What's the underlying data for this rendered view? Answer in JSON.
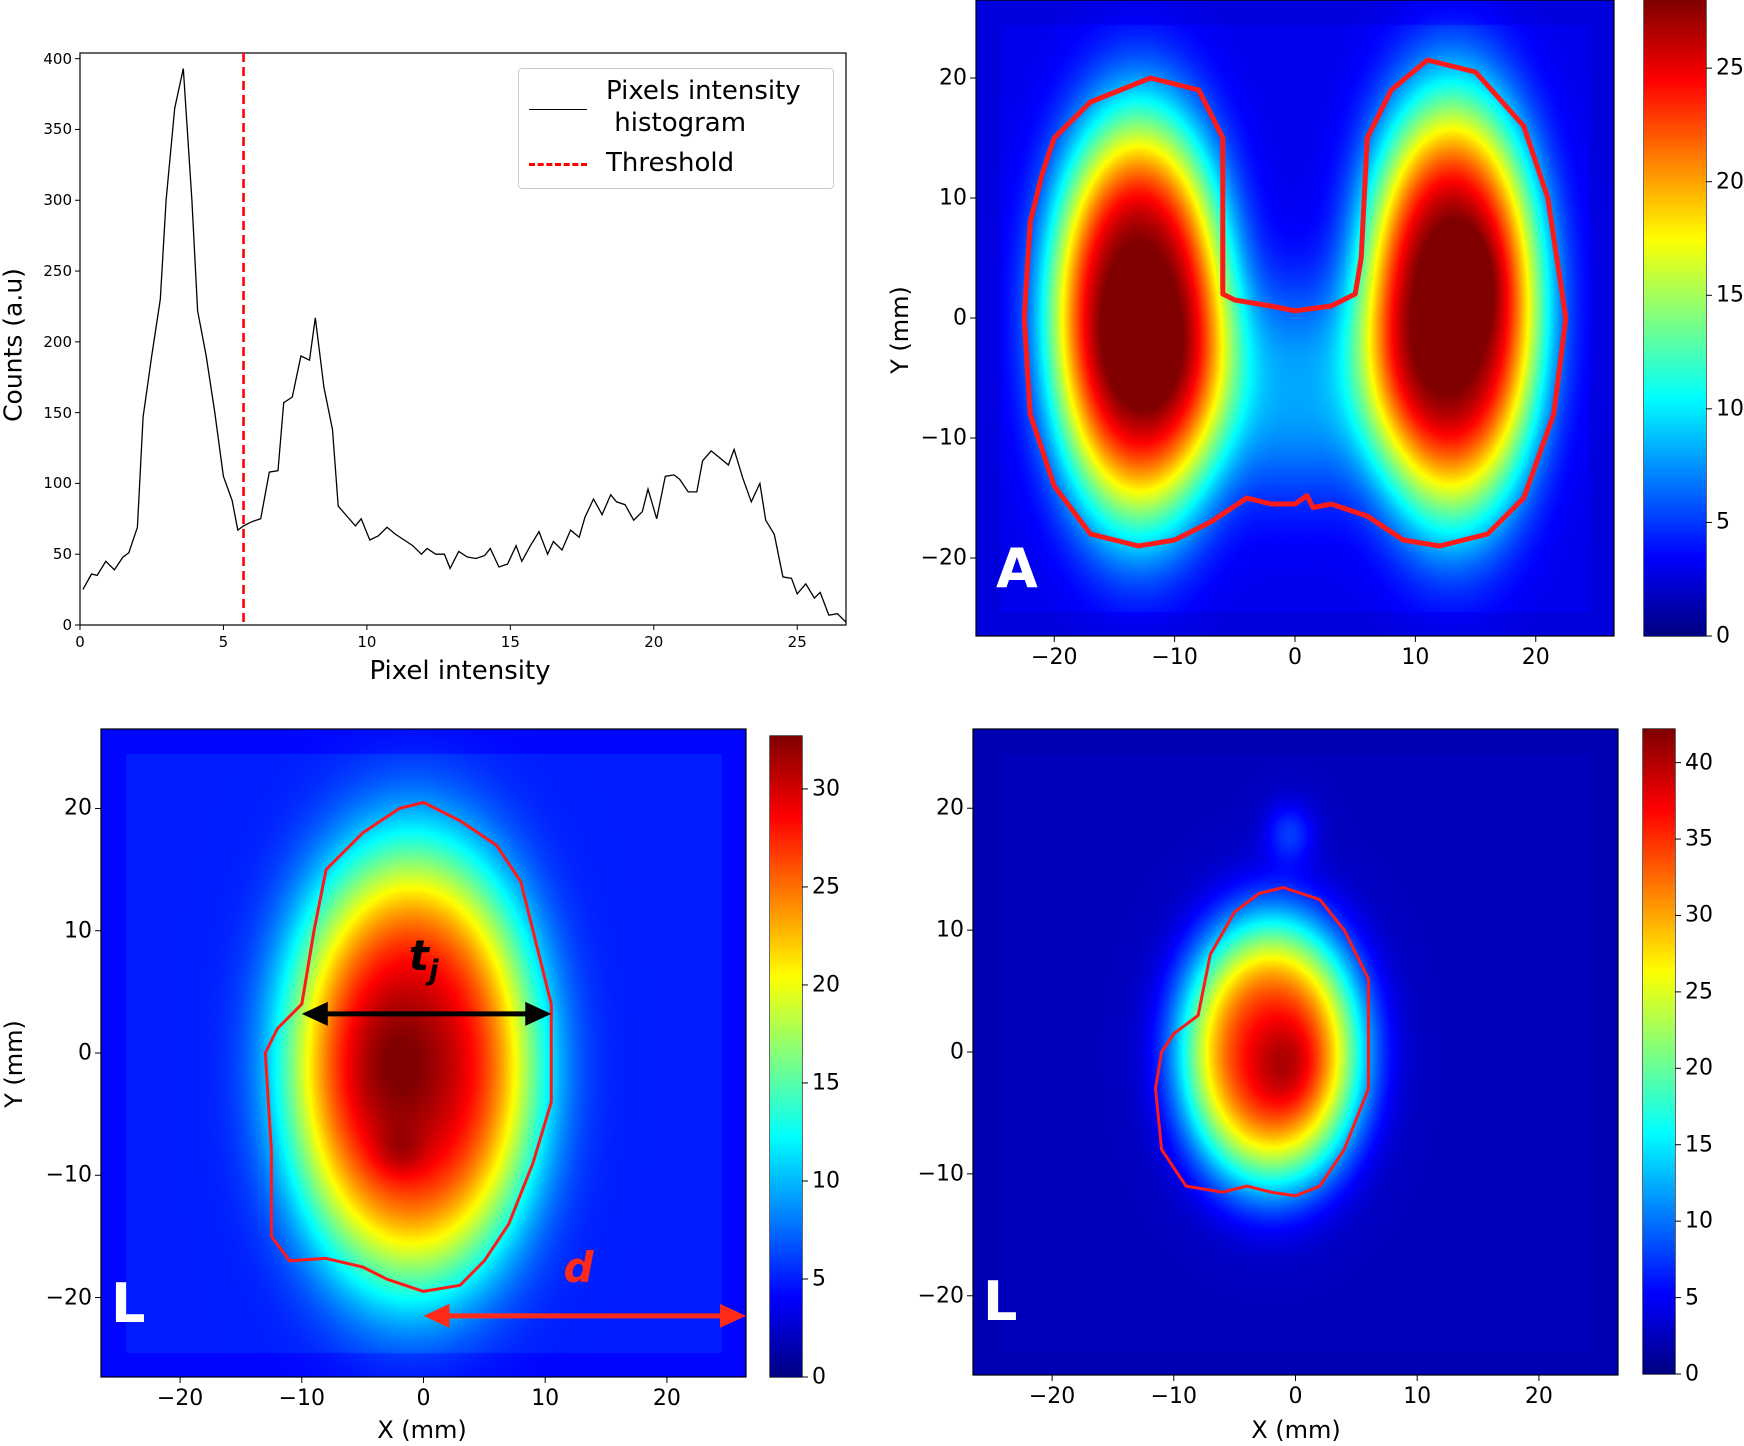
{
  "chart_data": [
    {
      "type": "line",
      "panel": "histogram",
      "xlabel": "Pixel intensity",
      "ylabel": "Counts (a.u)",
      "xlim": [
        0,
        26.7
      ],
      "ylim": [
        0,
        404
      ],
      "xticks": [
        0,
        5,
        10,
        15,
        20,
        25
      ],
      "yticks": [
        0,
        50,
        100,
        150,
        200,
        250,
        300,
        350,
        400
      ],
      "grid": false,
      "legend": {
        "placement": "top-right",
        "entries": [
          "Pixels intensity\n histogram",
          "Threshold"
        ]
      },
      "series": [
        {
          "name": "Pixels intensity histogram",
          "color": "#000000",
          "x": [
            0.1,
            0.4,
            0.6,
            0.9,
            1.2,
            1.5,
            1.7,
            2.0,
            2.2,
            2.5,
            2.8,
            3.0,
            3.3,
            3.6,
            3.9,
            4.1,
            4.4,
            4.7,
            5.0,
            5.3,
            5.5,
            5.7,
            6.0,
            6.3,
            6.6,
            6.9,
            7.1,
            7.4,
            7.7,
            8.0,
            8.2,
            8.5,
            8.8,
            9.0,
            9.3,
            9.6,
            9.8,
            10.1,
            10.4,
            10.7,
            11.0,
            11.3,
            11.6,
            11.9,
            12.1,
            12.4,
            12.7,
            12.9,
            13.2,
            13.5,
            13.8,
            14.1,
            14.3,
            14.6,
            14.9,
            15.2,
            15.4,
            15.7,
            16.0,
            16.3,
            16.5,
            16.8,
            17.1,
            17.4,
            17.6,
            17.9,
            18.2,
            18.5,
            18.7,
            19.0,
            19.3,
            19.6,
            19.8,
            20.1,
            20.4,
            20.7,
            20.9,
            21.2,
            21.5,
            21.7,
            22.0,
            22.3,
            22.6,
            22.8,
            23.1,
            23.4,
            23.7,
            23.9,
            24.2,
            24.5,
            24.8,
            25.0,
            25.3,
            25.6,
            25.8,
            26.1,
            26.4,
            26.7
          ],
          "y": [
            25,
            36,
            35,
            45,
            39,
            48,
            51,
            69,
            147,
            190,
            230,
            300,
            365,
            393,
            300,
            222,
            190,
            150,
            105,
            88,
            67,
            70,
            73,
            75,
            108,
            109,
            157,
            161,
            190,
            187,
            217,
            168,
            138,
            84,
            77,
            70,
            75,
            60,
            63,
            69,
            64,
            60,
            56,
            50,
            54,
            50,
            50,
            40,
            52,
            48,
            47,
            49,
            54,
            41,
            43,
            56,
            45,
            56,
            66,
            50,
            59,
            53,
            67,
            62,
            76,
            89,
            78,
            92,
            87,
            85,
            74,
            80,
            96,
            75,
            105,
            106,
            103,
            94,
            94,
            116,
            123,
            118,
            113,
            124,
            104,
            87,
            100,
            74,
            64,
            34,
            33,
            22,
            29,
            19,
            23,
            7,
            8,
            2
          ]
        },
        {
          "name": "Threshold",
          "color": "#ff0000",
          "style": "dashed",
          "x_value": 5.7
        }
      ]
    },
    {
      "type": "heatmap",
      "panel": "A",
      "panel_label": "A",
      "xlabel": "",
      "ylabel": "Y (mm)",
      "xlim": [
        -26.5,
        26.5
      ],
      "ylim": [
        -26.5,
        26.5
      ],
      "xticks": [
        -20,
        -10,
        0,
        10,
        20
      ],
      "yticks": [
        -20,
        -10,
        0,
        10,
        20
      ],
      "colormap": "jet",
      "clim": [
        0,
        28
      ],
      "cbar_ticks": [
        0,
        5,
        10,
        15,
        20,
        25
      ],
      "contour_color": "#ff1a1a"
    },
    {
      "type": "heatmap",
      "panel": "bottom-left",
      "panel_label": "L",
      "xlabel": "X (mm)",
      "ylabel": "Y (mm)",
      "xlim": [
        -26.5,
        26.5
      ],
      "ylim": [
        -26.5,
        26.5
      ],
      "xticks": [
        -20,
        -10,
        0,
        10,
        20
      ],
      "yticks": [
        -20,
        -10,
        0,
        10,
        20
      ],
      "colormap": "jet",
      "clim": [
        0,
        32.7
      ],
      "cbar_ticks": [
        0,
        5,
        10,
        15,
        20,
        25,
        30
      ],
      "contour_color": "#ff1a1a",
      "annotations": [
        {
          "text": "t",
          "subscript": "j",
          "color": "#000000",
          "type": "double-arrow"
        },
        {
          "text": "d",
          "color": "#ff2a1a",
          "type": "double-arrow"
        }
      ]
    },
    {
      "type": "heatmap",
      "panel": "bottom-right",
      "panel_label": "L",
      "xlabel": "X (mm)",
      "ylabel": "",
      "xlim": [
        -26.5,
        26.5
      ],
      "ylim": [
        -26.5,
        26.5
      ],
      "xticks": [
        -20,
        -10,
        0,
        10,
        20
      ],
      "yticks": [
        -20,
        -10,
        0,
        10,
        20
      ],
      "colormap": "jet",
      "clim": [
        0,
        42.2
      ],
      "cbar_ticks": [
        0,
        5,
        10,
        15,
        20,
        25,
        30,
        35,
        40
      ],
      "contour_color": "#ff1a1a"
    }
  ]
}
